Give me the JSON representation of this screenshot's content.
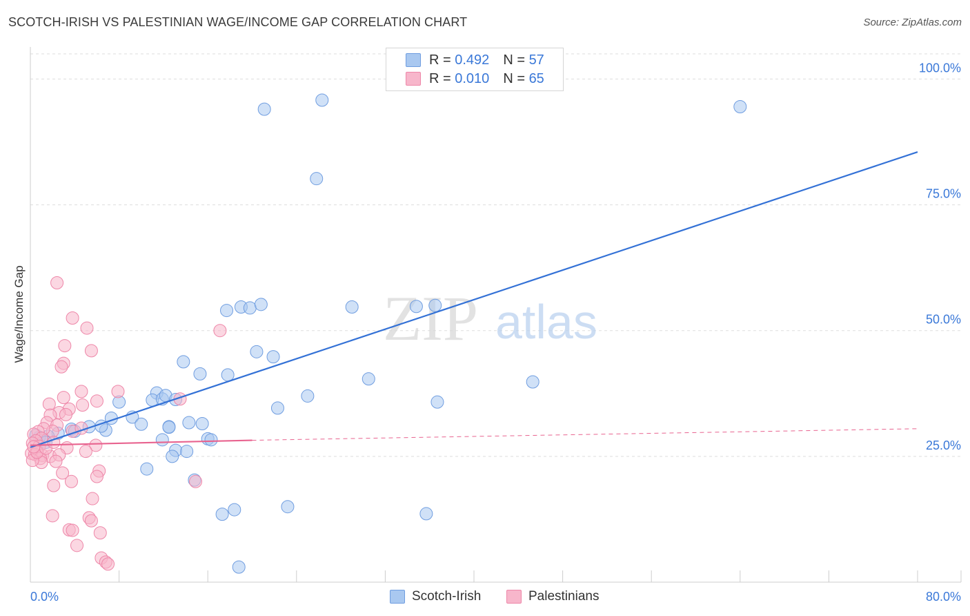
{
  "title": "SCOTCH-IRISH VS PALESTINIAN WAGE/INCOME GAP CORRELATION CHART",
  "source": "Source: ZipAtlas.com",
  "watermark": {
    "zip": "ZIP",
    "atlas": "atlas"
  },
  "legend": {
    "series1": {
      "r_label": "R =",
      "r_value": "0.492",
      "n_label": "N =",
      "n_value": "57"
    },
    "series2": {
      "r_label": "R =",
      "r_value": "0.010",
      "n_label": "N =",
      "n_value": "65"
    }
  },
  "bottom_legend": {
    "series1": "Scotch-Irish",
    "series2": "Palestinians"
  },
  "colors": {
    "blue_fill": "#a9c8f0",
    "blue_stroke": "#6f9de0",
    "blue_line": "#3371d6",
    "pink_fill": "#f7b6cb",
    "pink_stroke": "#ee86a8",
    "pink_line": "#e8638f",
    "axis_text": "#3a78d8",
    "grid": "#dddddd"
  },
  "chart_data": {
    "type": "scatter",
    "title": "SCOTCH-IRISH VS PALESTINIAN WAGE/INCOME GAP CORRELATION CHART",
    "xlabel": "",
    "ylabel": "Wage/Income Gap",
    "xlim": [
      0,
      80
    ],
    "ylim": [
      0,
      105
    ],
    "x_tick_labels": [
      "0.0%",
      "80.0%"
    ],
    "y_ticks": [
      25,
      50,
      75,
      100
    ],
    "y_tick_labels": [
      "25.0%",
      "50.0%",
      "75.0%",
      "100.0%"
    ],
    "series": [
      {
        "name": "Scotch-Irish",
        "color": "#a9c8f0",
        "points": [
          [
            21.1,
            94.0
          ],
          [
            26.3,
            95.8
          ],
          [
            64.0,
            94.5
          ],
          [
            25.8,
            80.2
          ],
          [
            17.7,
            54.0
          ],
          [
            19.0,
            54.7
          ],
          [
            19.8,
            54.5
          ],
          [
            20.8,
            55.2
          ],
          [
            29.0,
            54.7
          ],
          [
            34.8,
            54.8
          ],
          [
            36.5,
            55.0
          ],
          [
            20.4,
            45.8
          ],
          [
            21.9,
            44.8
          ],
          [
            13.8,
            43.8
          ],
          [
            15.3,
            41.4
          ],
          [
            17.8,
            41.2
          ],
          [
            30.5,
            40.4
          ],
          [
            45.3,
            39.8
          ],
          [
            11.4,
            37.6
          ],
          [
            11.0,
            36.2
          ],
          [
            11.9,
            36.4
          ],
          [
            8.0,
            35.8
          ],
          [
            25.0,
            37.0
          ],
          [
            22.3,
            34.6
          ],
          [
            36.7,
            35.8
          ],
          [
            12.2,
            37.1
          ],
          [
            7.3,
            32.6
          ],
          [
            9.2,
            32.8
          ],
          [
            3.7,
            30.4
          ],
          [
            5.3,
            30.9
          ],
          [
            6.8,
            30.2
          ],
          [
            4.0,
            30.0
          ],
          [
            2.5,
            29.6
          ],
          [
            1.6,
            29.0
          ],
          [
            0.8,
            28.8
          ],
          [
            0.5,
            29.2
          ],
          [
            1.4,
            27.8
          ],
          [
            12.5,
            30.9
          ],
          [
            10.0,
            31.4
          ],
          [
            13.1,
            36.3
          ],
          [
            15.5,
            31.5
          ],
          [
            11.9,
            28.3
          ],
          [
            16.0,
            28.5
          ],
          [
            16.3,
            28.3
          ],
          [
            13.1,
            26.2
          ],
          [
            12.5,
            30.8
          ],
          [
            14.3,
            31.7
          ],
          [
            10.5,
            22.5
          ],
          [
            12.8,
            25.0
          ],
          [
            14.1,
            26.0
          ],
          [
            14.8,
            20.3
          ],
          [
            17.3,
            13.5
          ],
          [
            18.4,
            14.4
          ],
          [
            23.2,
            15.0
          ],
          [
            35.7,
            13.6
          ],
          [
            18.8,
            3.0
          ],
          [
            6.4,
            31.0
          ]
        ]
      },
      {
        "name": "Palestinians",
        "color": "#f7b6cb",
        "points": [
          [
            2.4,
            59.5
          ],
          [
            3.8,
            52.5
          ],
          [
            5.1,
            50.5
          ],
          [
            17.1,
            50.0
          ],
          [
            3.1,
            47.0
          ],
          [
            5.5,
            46.0
          ],
          [
            3.0,
            43.5
          ],
          [
            2.8,
            42.8
          ],
          [
            7.9,
            37.9
          ],
          [
            4.6,
            37.9
          ],
          [
            3.0,
            36.7
          ],
          [
            13.5,
            36.4
          ],
          [
            4.7,
            35.2
          ],
          [
            1.7,
            35.4
          ],
          [
            3.5,
            34.4
          ],
          [
            2.6,
            33.7
          ],
          [
            1.8,
            33.2
          ],
          [
            3.2,
            33.3
          ],
          [
            1.5,
            31.7
          ],
          [
            2.4,
            31.2
          ],
          [
            3.8,
            30.0
          ],
          [
            2.0,
            30.0
          ],
          [
            4.6,
            30.6
          ],
          [
            1.2,
            30.5
          ],
          [
            0.7,
            29.9
          ],
          [
            0.3,
            29.4
          ],
          [
            1.0,
            28.6
          ],
          [
            0.5,
            28.1
          ],
          [
            0.2,
            27.6
          ],
          [
            0.8,
            27.0
          ],
          [
            5.9,
            27.2
          ],
          [
            3.3,
            26.7
          ],
          [
            0.6,
            26.0
          ],
          [
            0.1,
            25.6
          ],
          [
            0.4,
            25.4
          ],
          [
            1.1,
            25.2
          ],
          [
            1.8,
            25.0
          ],
          [
            2.6,
            25.3
          ],
          [
            0.9,
            24.6
          ],
          [
            2.3,
            24.0
          ],
          [
            1.0,
            23.8
          ],
          [
            0.2,
            24.2
          ],
          [
            0.6,
            25.8
          ],
          [
            1.4,
            26.6
          ],
          [
            2.1,
            27.8
          ],
          [
            0.3,
            26.9
          ],
          [
            6.2,
            22.1
          ],
          [
            6.0,
            21.0
          ],
          [
            2.9,
            21.7
          ],
          [
            3.7,
            20.0
          ],
          [
            2.1,
            19.2
          ],
          [
            14.9,
            20.0
          ],
          [
            5.6,
            16.6
          ],
          [
            2.0,
            13.2
          ],
          [
            5.3,
            12.8
          ],
          [
            5.5,
            12.2
          ],
          [
            3.5,
            10.4
          ],
          [
            3.8,
            10.3
          ],
          [
            6.3,
            9.8
          ],
          [
            4.2,
            7.3
          ],
          [
            6.4,
            4.8
          ],
          [
            6.8,
            4.0
          ],
          [
            7.0,
            3.6
          ],
          [
            6.0,
            36.0
          ],
          [
            5.0,
            26.0
          ]
        ]
      }
    ],
    "trend_lines": [
      {
        "series": "Scotch-Irish",
        "x": [
          0,
          80
        ],
        "y": [
          26.8,
          85.5
        ],
        "style": "solid"
      },
      {
        "series": "Palestinians",
        "x": [
          0,
          20
        ],
        "y": [
          27.2,
          28.2
        ],
        "style": "solid"
      },
      {
        "series": "Palestinians",
        "x": [
          20,
          80
        ],
        "y": [
          28.2,
          30.5
        ],
        "style": "dashed"
      }
    ]
  }
}
